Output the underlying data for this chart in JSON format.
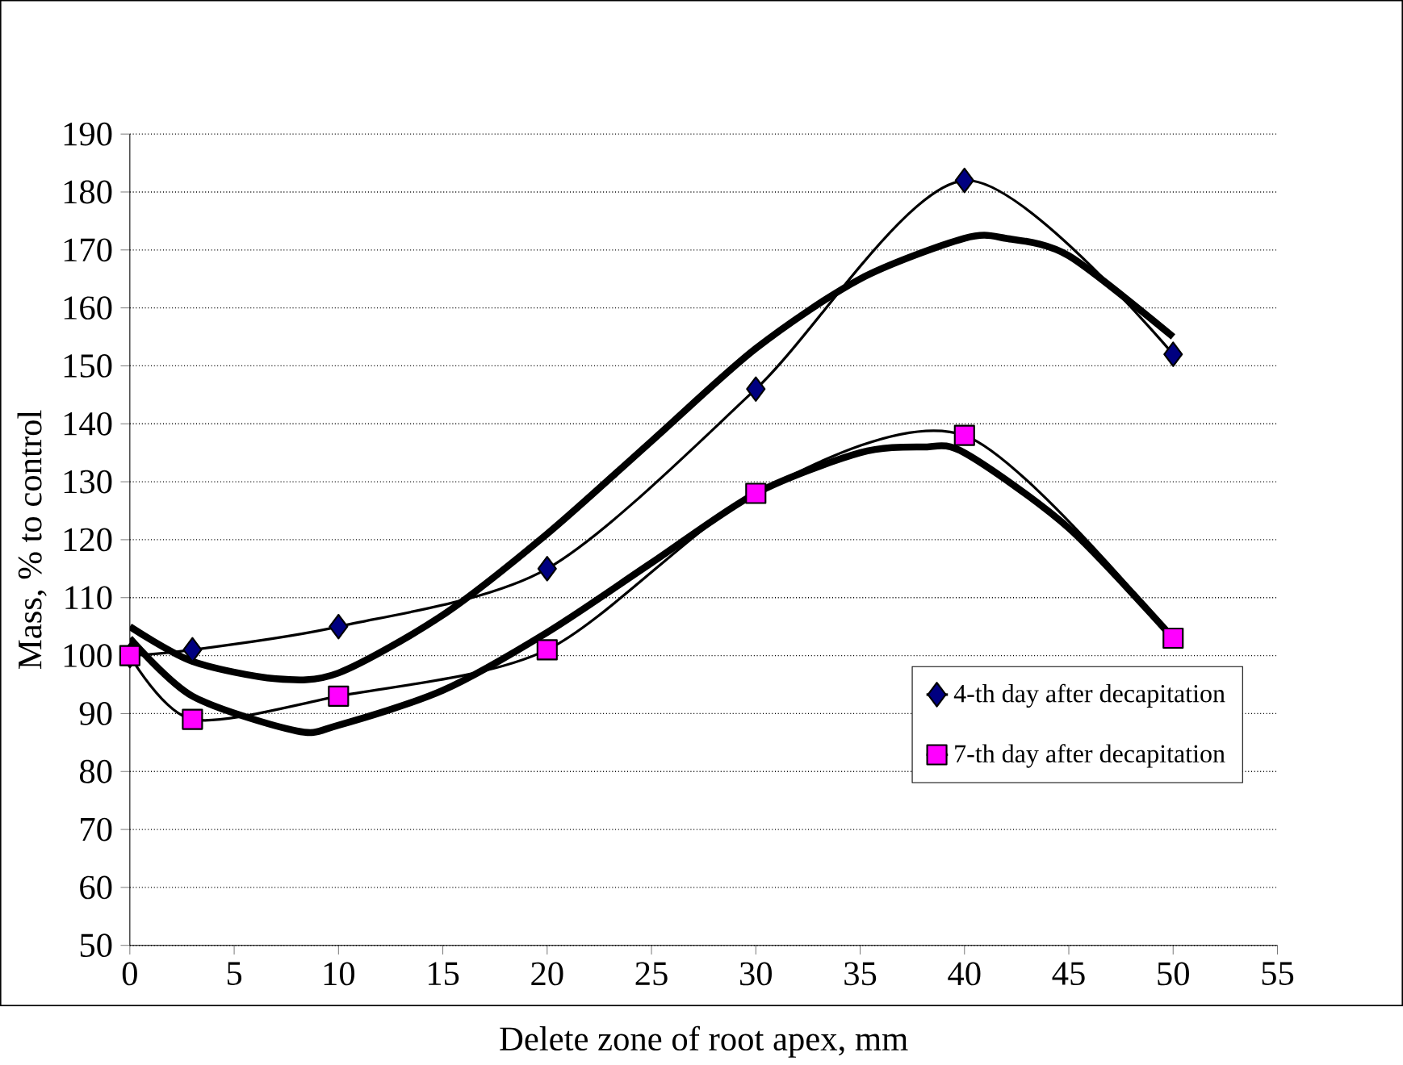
{
  "chart_data": {
    "type": "line",
    "xlabel": "Delete zone of root apex, mm",
    "ylabel": "Mass, % to control",
    "xlim": [
      0,
      55
    ],
    "xticks": [
      0,
      5,
      10,
      15,
      20,
      25,
      30,
      35,
      40,
      45,
      50,
      55
    ],
    "ylim": [
      50,
      190
    ],
    "yticks": [
      50,
      60,
      70,
      80,
      90,
      100,
      110,
      120,
      130,
      140,
      150,
      160,
      170,
      180,
      190
    ],
    "grid": "y",
    "legend": "bottom right",
    "line_style": "solid",
    "series": [
      {
        "name": "4-th day after decapitation",
        "color": "#000080",
        "marker": "diamond",
        "x": [
          0,
          3,
          10,
          20,
          30,
          40,
          50
        ],
        "values": [
          100,
          101,
          105,
          115,
          146,
          182,
          152
        ]
      },
      {
        "name": "7-th day after decapitation",
        "color": "#ff00ff",
        "marker": "square",
        "x": [
          0,
          3,
          10,
          20,
          30,
          40,
          50
        ],
        "values": [
          100,
          89,
          93,
          101,
          128,
          138,
          103
        ]
      },
      {
        "type": "line",
        "color": "#000000",
        "marker": "none",
        "x": [
          0,
          3,
          7,
          10,
          15,
          20,
          25,
          30,
          35,
          40,
          42,
          45,
          50
        ],
        "values": [
          105,
          99,
          96,
          97,
          107,
          121,
          137,
          153,
          165,
          172,
          172,
          169,
          155
        ]
      },
      {
        "type": "line",
        "color": "#000000",
        "marker": "none",
        "x": [
          0,
          3,
          8,
          10,
          15,
          20,
          25,
          30,
          35,
          38,
          40,
          45,
          50
        ],
        "values": [
          103,
          93,
          87,
          88,
          94,
          104,
          116,
          128,
          135,
          136,
          135,
          122,
          103
        ]
      }
    ]
  }
}
